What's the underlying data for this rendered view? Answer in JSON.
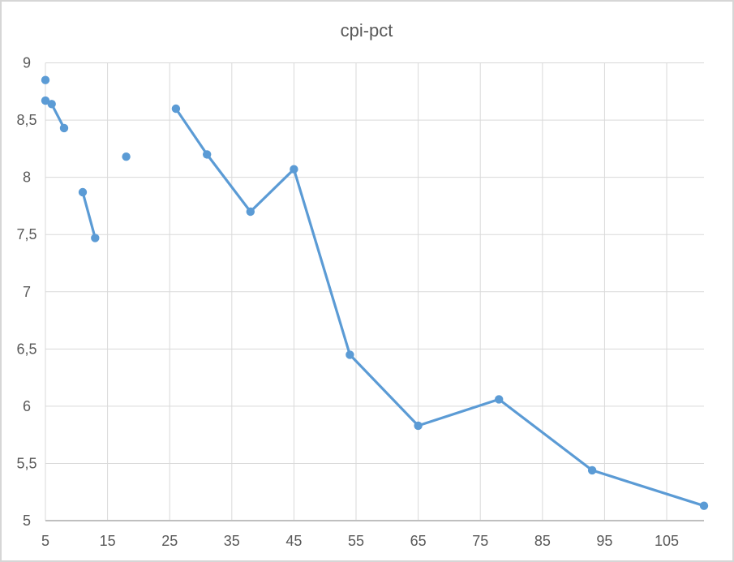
{
  "chart_data": {
    "type": "scatter",
    "title": "cpi-pct",
    "xlabel": "",
    "ylabel": "",
    "xlim": [
      5,
      111
    ],
    "ylim": [
      5,
      9
    ],
    "grid": true,
    "legend": "none",
    "x_ticks": [
      {
        "value": 5,
        "label": "5"
      },
      {
        "value": 15,
        "label": "15"
      },
      {
        "value": 25,
        "label": "25"
      },
      {
        "value": 35,
        "label": "35"
      },
      {
        "value": 45,
        "label": "45"
      },
      {
        "value": 55,
        "label": "55"
      },
      {
        "value": 65,
        "label": "65"
      },
      {
        "value": 75,
        "label": "75"
      },
      {
        "value": 85,
        "label": "85"
      },
      {
        "value": 95,
        "label": "95"
      },
      {
        "value": 105,
        "label": "105"
      }
    ],
    "y_ticks": [
      {
        "value": 5,
        "label": "5"
      },
      {
        "value": 5.5,
        "label": "5,5"
      },
      {
        "value": 6,
        "label": "6"
      },
      {
        "value": 6.5,
        "label": "6,5"
      },
      {
        "value": 7,
        "label": "7"
      },
      {
        "value": 7.5,
        "label": "7,5"
      },
      {
        "value": 8,
        "label": "8"
      },
      {
        "value": 8.5,
        "label": "8,5"
      },
      {
        "value": 9,
        "label": "9"
      }
    ],
    "series": [
      {
        "name": "cpi-pct",
        "color": "#5B9BD5",
        "marker": "circle",
        "line_style": "solid",
        "segments": [
          [
            [
              5,
              8.85
            ]
          ],
          [
            [
              5,
              8.67
            ],
            [
              6,
              8.64
            ],
            [
              8,
              8.43
            ]
          ],
          [
            [
              11,
              7.87
            ],
            [
              13,
              7.47
            ]
          ],
          [
            [
              18,
              8.18
            ]
          ],
          [
            [
              26,
              8.6
            ],
            [
              31,
              8.2
            ],
            [
              38,
              7.7
            ],
            [
              45,
              8.07
            ],
            [
              54,
              6.45
            ],
            [
              65,
              5.83
            ],
            [
              78,
              6.06
            ],
            [
              93,
              5.44
            ],
            [
              111,
              5.13
            ]
          ]
        ]
      }
    ]
  },
  "style": {
    "series_color": "#5B9BD5",
    "gridline_color": "#D9D9D9",
    "axis_line_color": "#BFBFBF",
    "tick_label_color": "#595959",
    "title_color": "#595959",
    "chart_border_color": "#D6D6D6",
    "background_color": "#FFFFFF"
  }
}
